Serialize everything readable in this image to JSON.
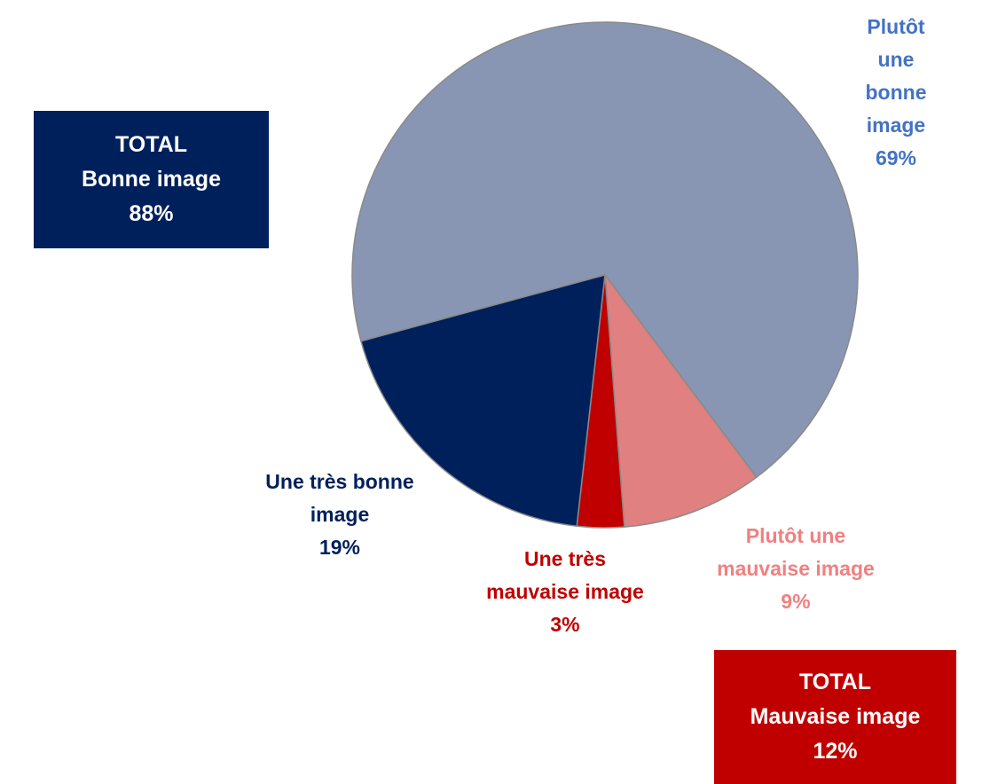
{
  "chart_data": {
    "type": "pie",
    "categories": [
      "Plutôt une\nbonne image",
      "Plutôt une\nmauvaise image",
      "Une très\nmauvaise image",
      "Une très bonne\nimage"
    ],
    "values": [
      69,
      9,
      3,
      19
    ],
    "value_labels": [
      "69%",
      "9%",
      "3%",
      "19%"
    ],
    "colors": [
      "#8896b3",
      "#e08080",
      "#c00000",
      "#00205b"
    ],
    "label_colors": [
      "#4472c4",
      "#f08080",
      "#c00000",
      "#00205b"
    ],
    "totals": [
      {
        "title": "TOTAL",
        "label": "Bonne image",
        "value_label": "88%",
        "color": "#00205b"
      },
      {
        "title": "TOTAL",
        "label": "Mauvaise image",
        "value_label": "12%",
        "color": "#c00000"
      }
    ]
  }
}
